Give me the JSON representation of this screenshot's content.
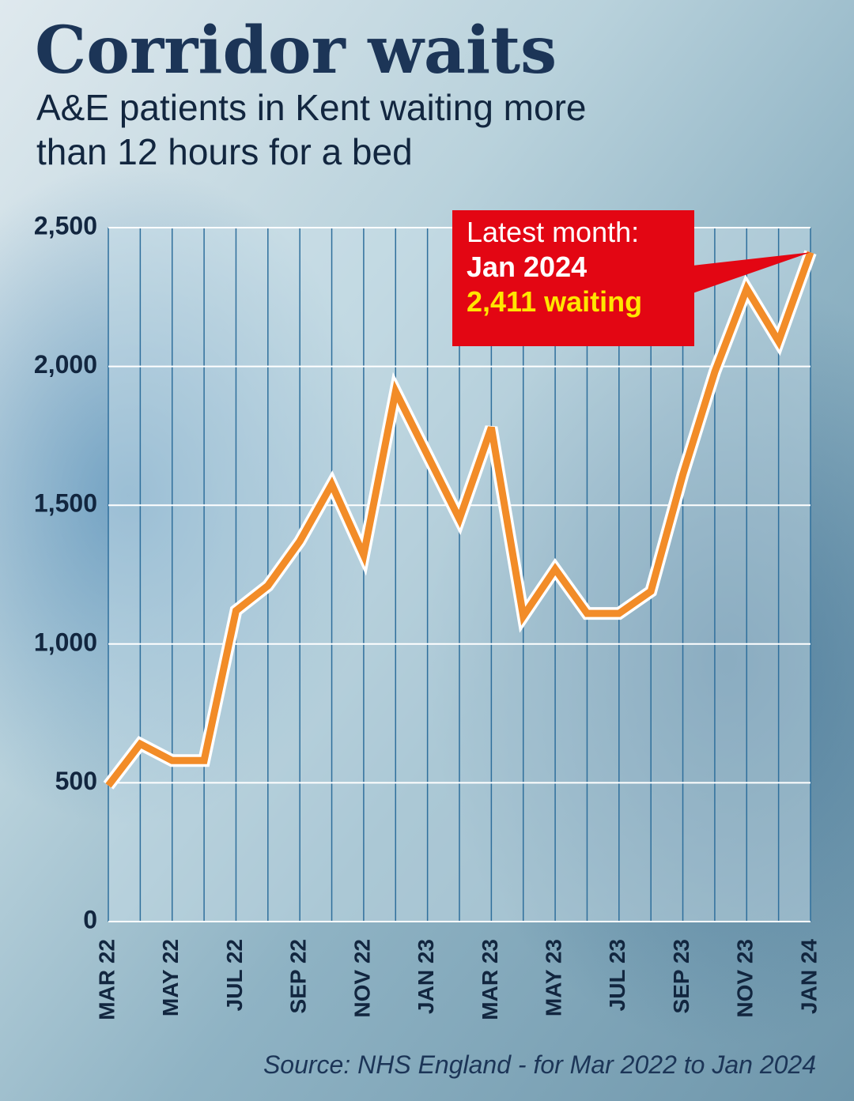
{
  "chart_data": {
    "type": "line",
    "title": "Corridor waits",
    "subtitle": "A&E patients in Kent waiting more than 12 hours for a bed",
    "source": "Source: NHS England - for Mar 2022 to Jan 2024",
    "annotation": {
      "heading": "Latest month:",
      "month": "Jan 2024",
      "value_text": "2,411 waiting"
    },
    "categories": [
      "MAR 22",
      null,
      "MAY 22",
      null,
      "JUL 22",
      null,
      "SEP 22",
      null,
      "NOV 22",
      null,
      "JAN 23",
      null,
      "MAR 23",
      null,
      "MAY 23",
      null,
      "JUL 23",
      null,
      "SEP 23",
      null,
      "NOV 23",
      null,
      "JAN 24"
    ],
    "values": [
      490,
      640,
      580,
      580,
      1120,
      1210,
      1370,
      1575,
      1320,
      1910,
      1680,
      1450,
      1780,
      1100,
      1270,
      1110,
      1110,
      1190,
      1610,
      1980,
      2280,
      2090,
      2411
    ],
    "color": "#f28c28",
    "annotation_color": "#e30613",
    "ylim": [
      0,
      2500
    ],
    "yticks": [
      0,
      500,
      {
        "value": 1000,
        "label": "1,000"
      },
      {
        "value": 1500,
        "label": "1,500"
      },
      {
        "value": 2000,
        "label": "2,000"
      },
      {
        "value": 2500,
        "label": "2,500"
      }
    ],
    "grid": true
  }
}
